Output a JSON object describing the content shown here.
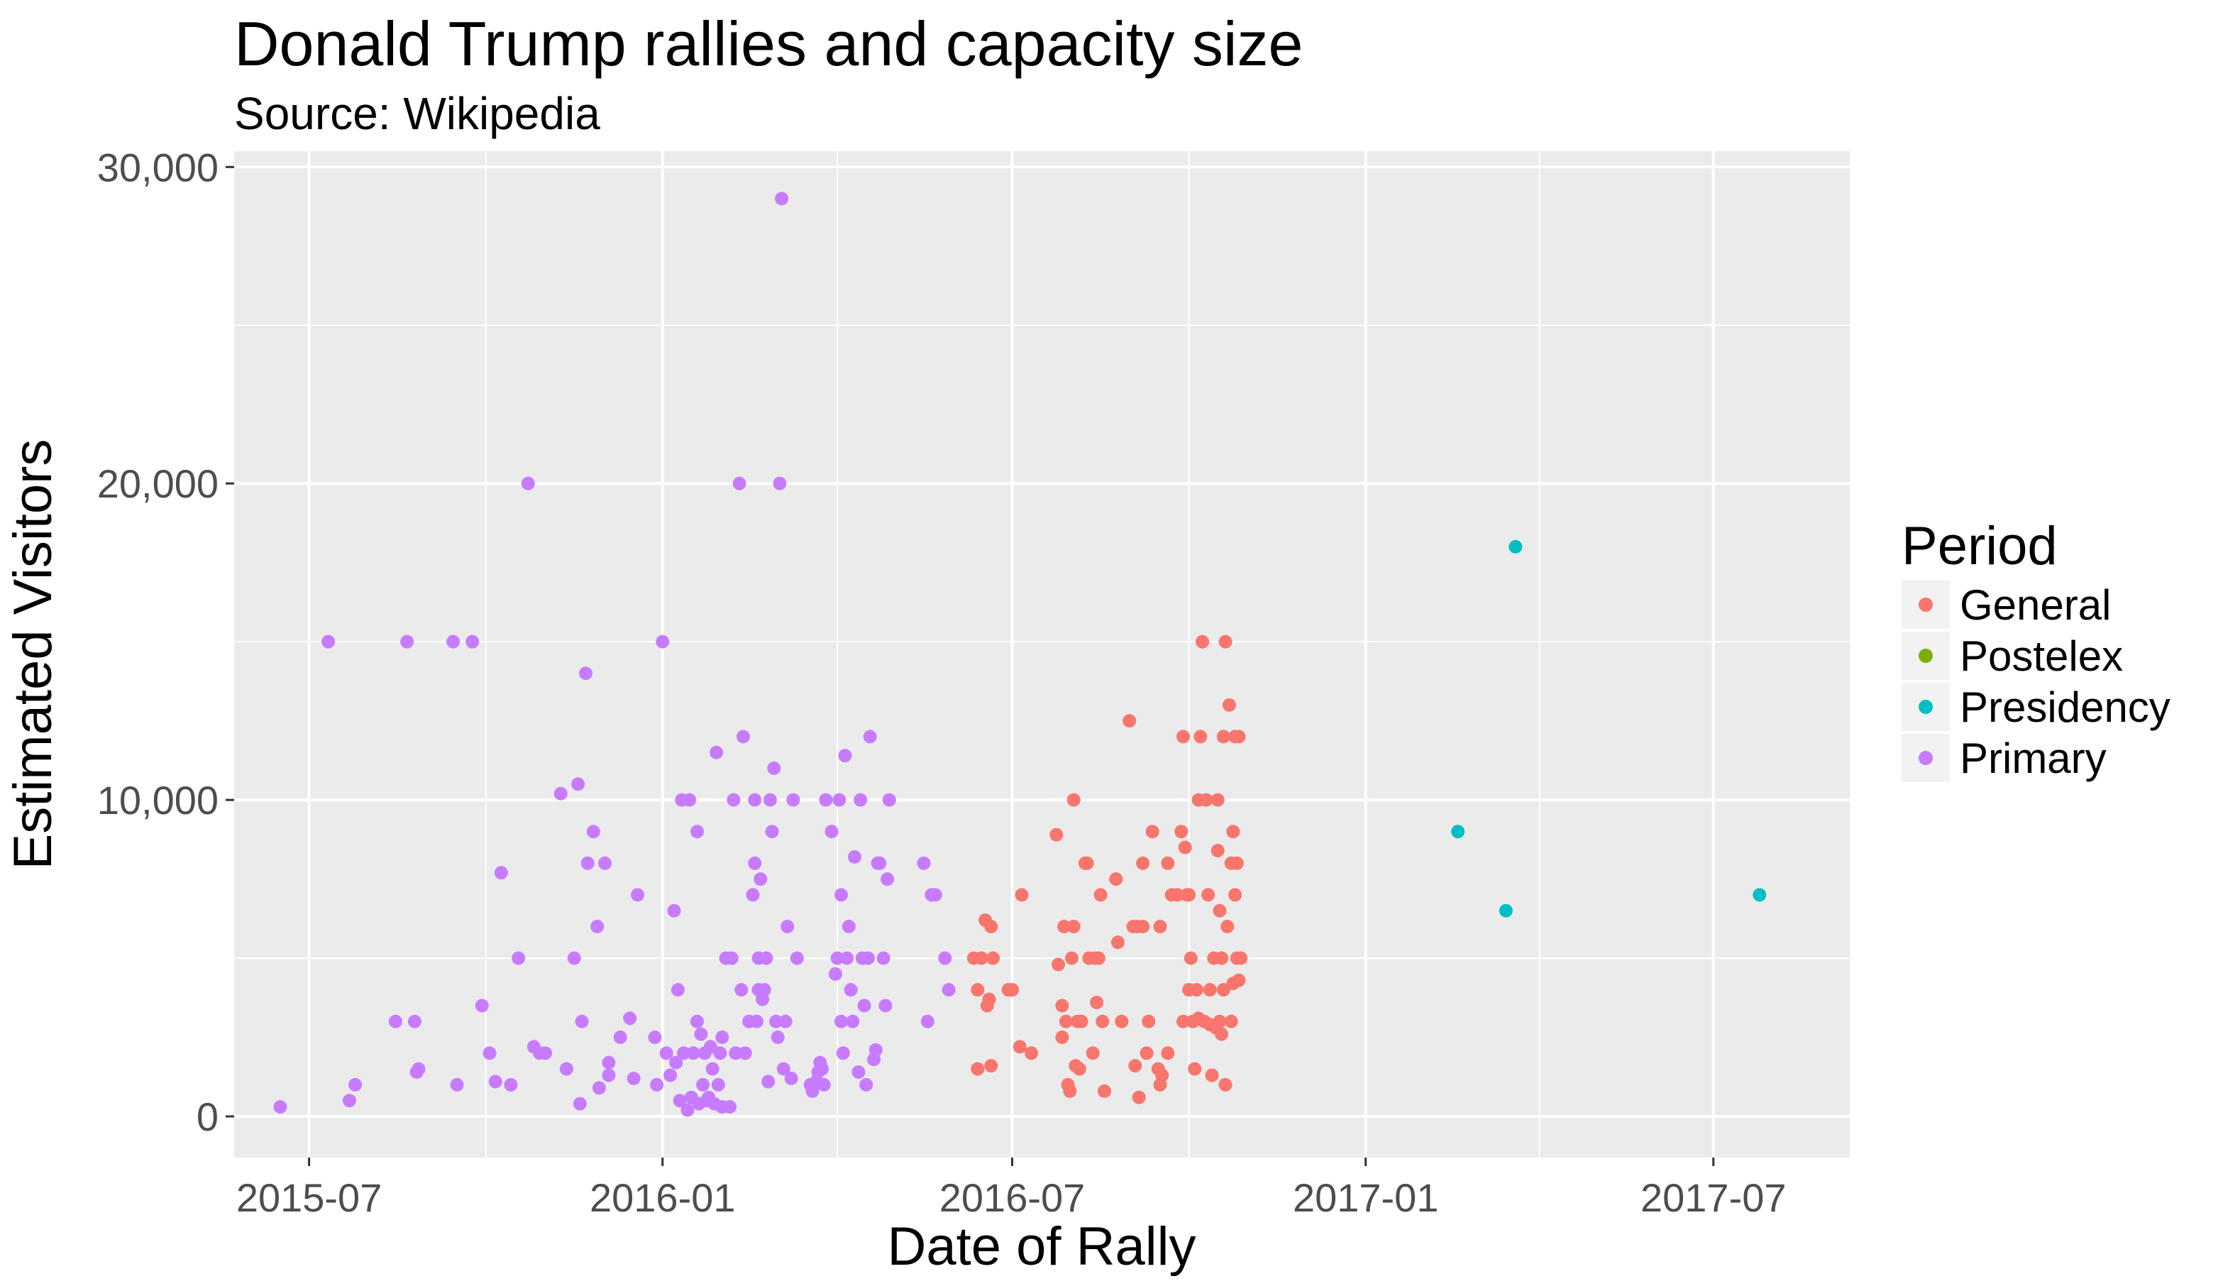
{
  "chart_data": {
    "type": "scatter",
    "title": "Donald Trump rallies and capacity size",
    "subtitle": "Source: Wikipedia",
    "xlabel": "Date of Rally",
    "ylabel": "Estimated Visitors",
    "x_type": "date",
    "xlim": [
      "2015-05-23",
      "2017-09-10"
    ],
    "ylim": [
      -1300,
      30500
    ],
    "x_ticks": [
      "2015-07-01",
      "2016-01-01",
      "2016-07-01",
      "2017-01-01",
      "2017-07-01"
    ],
    "x_tick_labels": [
      "2015-07",
      "2016-01",
      "2016-07",
      "2017-01",
      "2017-07"
    ],
    "y_ticks": [
      0,
      10000,
      20000,
      30000
    ],
    "y_tick_labels": [
      "0",
      "10,000",
      "20,000",
      "30,000"
    ],
    "grid": true,
    "legend_title": "Period",
    "legend_position": "right",
    "series": [
      {
        "name": "General",
        "color": "#f8766d",
        "points": [
          [
            "2016-06-11",
            5000
          ],
          [
            "2016-06-13",
            4000
          ],
          [
            "2016-06-15",
            5000
          ],
          [
            "2016-06-13",
            1500
          ],
          [
            "2016-06-17",
            6200
          ],
          [
            "2016-06-18",
            3500
          ],
          [
            "2016-06-19",
            3700
          ],
          [
            "2016-06-20",
            6000
          ],
          [
            "2016-06-21",
            5000
          ],
          [
            "2016-06-20",
            1600
          ],
          [
            "2016-06-29",
            4000
          ],
          [
            "2016-07-01",
            4000
          ],
          [
            "2016-07-05",
            2200
          ],
          [
            "2016-07-06",
            7000
          ],
          [
            "2016-07-11",
            2000
          ],
          [
            "2016-07-24",
            8900
          ],
          [
            "2016-07-25",
            4800
          ],
          [
            "2016-07-27",
            3500
          ],
          [
            "2016-07-27",
            2500
          ],
          [
            "2016-07-28",
            6000
          ],
          [
            "2016-07-29",
            3000
          ],
          [
            "2016-07-30",
            1000
          ],
          [
            "2016-07-31",
            800
          ],
          [
            "2016-08-01",
            5000
          ],
          [
            "2016-08-02",
            6000
          ],
          [
            "2016-08-02",
            10000
          ],
          [
            "2016-08-03",
            1600
          ],
          [
            "2016-08-04",
            3000
          ],
          [
            "2016-08-05",
            1500
          ],
          [
            "2016-08-06",
            3000
          ],
          [
            "2016-08-08",
            8000
          ],
          [
            "2016-08-09",
            8000
          ],
          [
            "2016-08-10",
            5000
          ],
          [
            "2016-08-12",
            2000
          ],
          [
            "2016-08-13",
            5000
          ],
          [
            "2016-08-14",
            3600
          ],
          [
            "2016-08-15",
            5000
          ],
          [
            "2016-08-16",
            7000
          ],
          [
            "2016-08-17",
            3000
          ],
          [
            "2016-08-18",
            800
          ],
          [
            "2016-08-24",
            7500
          ],
          [
            "2016-08-25",
            5500
          ],
          [
            "2016-08-27",
            3000
          ],
          [
            "2016-08-31",
            12500
          ],
          [
            "2016-09-02",
            6000
          ],
          [
            "2016-09-03",
            1600
          ],
          [
            "2016-09-04",
            6000
          ],
          [
            "2016-09-05",
            600
          ],
          [
            "2016-09-07",
            6000
          ],
          [
            "2016-09-07",
            8000
          ],
          [
            "2016-09-09",
            2000
          ],
          [
            "2016-09-10",
            3000
          ],
          [
            "2016-09-12",
            9000
          ],
          [
            "2016-09-15",
            1500
          ],
          [
            "2016-09-16",
            1000
          ],
          [
            "2016-09-16",
            6000
          ],
          [
            "2016-09-17",
            1300
          ],
          [
            "2016-09-20",
            2000
          ],
          [
            "2016-09-20",
            8000
          ],
          [
            "2016-09-22",
            7000
          ],
          [
            "2016-09-25",
            7000
          ],
          [
            "2016-09-27",
            9000
          ],
          [
            "2016-09-28",
            3000
          ],
          [
            "2016-09-28",
            12000
          ],
          [
            "2016-09-29",
            8500
          ],
          [
            "2016-09-30",
            7000
          ],
          [
            "2016-10-01",
            4000
          ],
          [
            "2016-10-01",
            7000
          ],
          [
            "2016-10-02",
            5000
          ],
          [
            "2016-10-03",
            3000
          ],
          [
            "2016-10-04",
            1500
          ],
          [
            "2016-10-05",
            4000
          ],
          [
            "2016-10-06",
            3100
          ],
          [
            "2016-10-06",
            10000
          ],
          [
            "2016-10-07",
            12000
          ],
          [
            "2016-10-08",
            15000
          ],
          [
            "2016-10-09",
            3000
          ],
          [
            "2016-10-10",
            10000
          ],
          [
            "2016-10-11",
            7000
          ],
          [
            "2016-10-12",
            4000
          ],
          [
            "2016-10-12",
            2900
          ],
          [
            "2016-10-13",
            1300
          ],
          [
            "2016-10-14",
            5000
          ],
          [
            "2016-10-15",
            2800
          ],
          [
            "2016-10-16",
            8400
          ],
          [
            "2016-10-16",
            10000
          ],
          [
            "2016-10-17",
            3000
          ],
          [
            "2016-10-17",
            6500
          ],
          [
            "2016-10-18",
            2600
          ],
          [
            "2016-10-18",
            5000
          ],
          [
            "2016-10-19",
            12000
          ],
          [
            "2016-10-19",
            4000
          ],
          [
            "2016-10-20",
            15000
          ],
          [
            "2016-10-20",
            1000
          ],
          [
            "2016-10-21",
            6000
          ],
          [
            "2016-10-22",
            13000
          ],
          [
            "2016-10-23",
            8000
          ],
          [
            "2016-10-23",
            3000
          ],
          [
            "2016-10-24",
            4200
          ],
          [
            "2016-10-24",
            9000
          ],
          [
            "2016-10-25",
            12000
          ],
          [
            "2016-10-25",
            7000
          ],
          [
            "2016-10-26",
            8000
          ],
          [
            "2016-10-26",
            5000
          ],
          [
            "2016-10-27",
            12000
          ],
          [
            "2016-10-27",
            4300
          ],
          [
            "2016-10-28",
            5000
          ]
        ]
      },
      {
        "name": "Postelex",
        "color": "#7cae00",
        "points": []
      },
      {
        "name": "Presidency",
        "color": "#00bfc4",
        "points": [
          [
            "2017-02-18",
            9000
          ],
          [
            "2017-03-15",
            6500
          ],
          [
            "2017-03-20",
            18000
          ],
          [
            "2017-07-25",
            7000
          ]
        ]
      },
      {
        "name": "Primary",
        "color": "#c77cff",
        "points": [
          [
            "2015-06-16",
            300
          ],
          [
            "2015-07-11",
            15000
          ],
          [
            "2015-07-22",
            500
          ],
          [
            "2015-07-25",
            1000
          ],
          [
            "2015-08-15",
            3000
          ],
          [
            "2015-08-21",
            15000
          ],
          [
            "2015-08-25",
            3000
          ],
          [
            "2015-08-26",
            1400
          ],
          [
            "2015-08-27",
            1500
          ],
          [
            "2015-09-14",
            15000
          ],
          [
            "2015-09-16",
            1000
          ],
          [
            "2015-09-24",
            15000
          ],
          [
            "2015-09-29",
            3500
          ],
          [
            "2015-10-03",
            2000
          ],
          [
            "2015-10-06",
            1100
          ],
          [
            "2015-10-09",
            7700
          ],
          [
            "2015-10-14",
            1000
          ],
          [
            "2015-10-18",
            5000
          ],
          [
            "2015-10-23",
            20000
          ],
          [
            "2015-10-26",
            2200
          ],
          [
            "2015-10-29",
            2000
          ],
          [
            "2015-11-01",
            2000
          ],
          [
            "2015-11-09",
            10200
          ],
          [
            "2015-11-12",
            1500
          ],
          [
            "2015-11-16",
            5000
          ],
          [
            "2015-11-18",
            10500
          ],
          [
            "2015-11-19",
            400
          ],
          [
            "2015-11-20",
            3000
          ],
          [
            "2015-11-22",
            14000
          ],
          [
            "2015-11-23",
            8000
          ],
          [
            "2015-11-26",
            9000
          ],
          [
            "2015-11-28",
            6000
          ],
          [
            "2015-11-29",
            900
          ],
          [
            "2015-12-02",
            8000
          ],
          [
            "2015-12-04",
            1700
          ],
          [
            "2015-12-04",
            1300
          ],
          [
            "2015-12-10",
            2500
          ],
          [
            "2015-12-15",
            3100
          ],
          [
            "2015-12-19",
            7000
          ],
          [
            "2015-12-17",
            1200
          ],
          [
            "2015-12-28",
            2500
          ],
          [
            "2015-12-29",
            1000
          ],
          [
            "2016-01-01",
            15000
          ],
          [
            "2016-01-03",
            2000
          ],
          [
            "2016-01-05",
            1300
          ],
          [
            "2016-01-07",
            6500
          ],
          [
            "2016-01-08",
            1700
          ],
          [
            "2016-01-09",
            4000
          ],
          [
            "2016-01-10",
            500
          ],
          [
            "2016-01-11",
            10000
          ],
          [
            "2016-01-12",
            2000
          ],
          [
            "2016-01-14",
            200
          ],
          [
            "2016-01-15",
            10000
          ],
          [
            "2016-01-16",
            600
          ],
          [
            "2016-01-17",
            2000
          ],
          [
            "2016-01-19",
            9000
          ],
          [
            "2016-01-19",
            3000
          ],
          [
            "2016-01-20",
            400
          ],
          [
            "2016-01-21",
            2600
          ],
          [
            "2016-01-22",
            1000
          ],
          [
            "2016-01-23",
            2000
          ],
          [
            "2016-01-24",
            500
          ],
          [
            "2016-01-25",
            600
          ],
          [
            "2016-01-26",
            2200
          ],
          [
            "2016-01-27",
            1500
          ],
          [
            "2016-01-28",
            400
          ],
          [
            "2016-01-29",
            11500
          ],
          [
            "2016-01-30",
            1000
          ],
          [
            "2016-01-31",
            2000
          ],
          [
            "2016-02-01",
            2500
          ],
          [
            "2016-02-01",
            300
          ],
          [
            "2016-02-03",
            5000
          ],
          [
            "2016-02-05",
            300
          ],
          [
            "2016-02-06",
            5000
          ],
          [
            "2016-02-07",
            10000
          ],
          [
            "2016-02-08",
            2000
          ],
          [
            "2016-02-10",
            20000
          ],
          [
            "2016-02-11",
            4000
          ],
          [
            "2016-02-12",
            12000
          ],
          [
            "2016-02-13",
            2000
          ],
          [
            "2016-02-15",
            3000
          ],
          [
            "2016-02-17",
            7000
          ],
          [
            "2016-02-18",
            8000
          ],
          [
            "2016-02-18",
            10000
          ],
          [
            "2016-02-19",
            3000
          ],
          [
            "2016-02-20",
            4000
          ],
          [
            "2016-02-20",
            5000
          ],
          [
            "2016-02-21",
            7500
          ],
          [
            "2016-02-22",
            3700
          ],
          [
            "2016-02-23",
            4000
          ],
          [
            "2016-02-24",
            5000
          ],
          [
            "2016-02-25",
            1100
          ],
          [
            "2016-02-26",
            10000
          ],
          [
            "2016-02-27",
            9000
          ],
          [
            "2016-02-28",
            11000
          ],
          [
            "2016-02-29",
            3000
          ],
          [
            "2016-03-01",
            2500
          ],
          [
            "2016-03-02",
            20000
          ],
          [
            "2016-03-03",
            29000
          ],
          [
            "2016-03-04",
            1500
          ],
          [
            "2016-03-05",
            3000
          ],
          [
            "2016-03-06",
            6000
          ],
          [
            "2016-03-08",
            1200
          ],
          [
            "2016-03-09",
            10000
          ],
          [
            "2016-03-11",
            5000
          ],
          [
            "2016-03-18",
            1000
          ],
          [
            "2016-03-19",
            800
          ],
          [
            "2016-03-20",
            1000
          ],
          [
            "2016-03-21",
            1100
          ],
          [
            "2016-03-22",
            1400
          ],
          [
            "2016-03-23",
            1700
          ],
          [
            "2016-03-24",
            1500
          ],
          [
            "2016-03-25",
            1000
          ],
          [
            "2016-03-26",
            10000
          ],
          [
            "2016-03-29",
            9000
          ],
          [
            "2016-03-31",
            4500
          ],
          [
            "2016-04-01",
            5000
          ],
          [
            "2016-04-02",
            10000
          ],
          [
            "2016-04-03",
            3000
          ],
          [
            "2016-04-04",
            2000
          ],
          [
            "2016-04-05",
            11400
          ],
          [
            "2016-04-06",
            5000
          ],
          [
            "2016-04-07",
            6000
          ],
          [
            "2016-04-08",
            4000
          ],
          [
            "2016-04-09",
            3000
          ],
          [
            "2016-04-10",
            8200
          ],
          [
            "2016-04-12",
            1400
          ],
          [
            "2016-04-13",
            10000
          ],
          [
            "2016-04-14",
            5000
          ],
          [
            "2016-04-15",
            3500
          ],
          [
            "2016-04-16",
            1000
          ],
          [
            "2016-04-17",
            5000
          ],
          [
            "2016-04-18",
            12000
          ],
          [
            "2016-04-20",
            1800
          ],
          [
            "2016-04-21",
            2100
          ],
          [
            "2016-04-22",
            8000
          ],
          [
            "2016-04-23",
            8000
          ],
          [
            "2016-04-25",
            5000
          ],
          [
            "2016-04-26",
            3500
          ],
          [
            "2016-04-27",
            7500
          ],
          [
            "2016-04-28",
            10000
          ],
          [
            "2016-05-16",
            8000
          ],
          [
            "2016-05-18",
            3000
          ],
          [
            "2016-05-20",
            7000
          ],
          [
            "2016-05-22",
            7000
          ],
          [
            "2016-05-27",
            5000
          ],
          [
            "2016-05-29",
            4000
          ],
          [
            "2016-04-03",
            7000
          ]
        ]
      }
    ]
  }
}
